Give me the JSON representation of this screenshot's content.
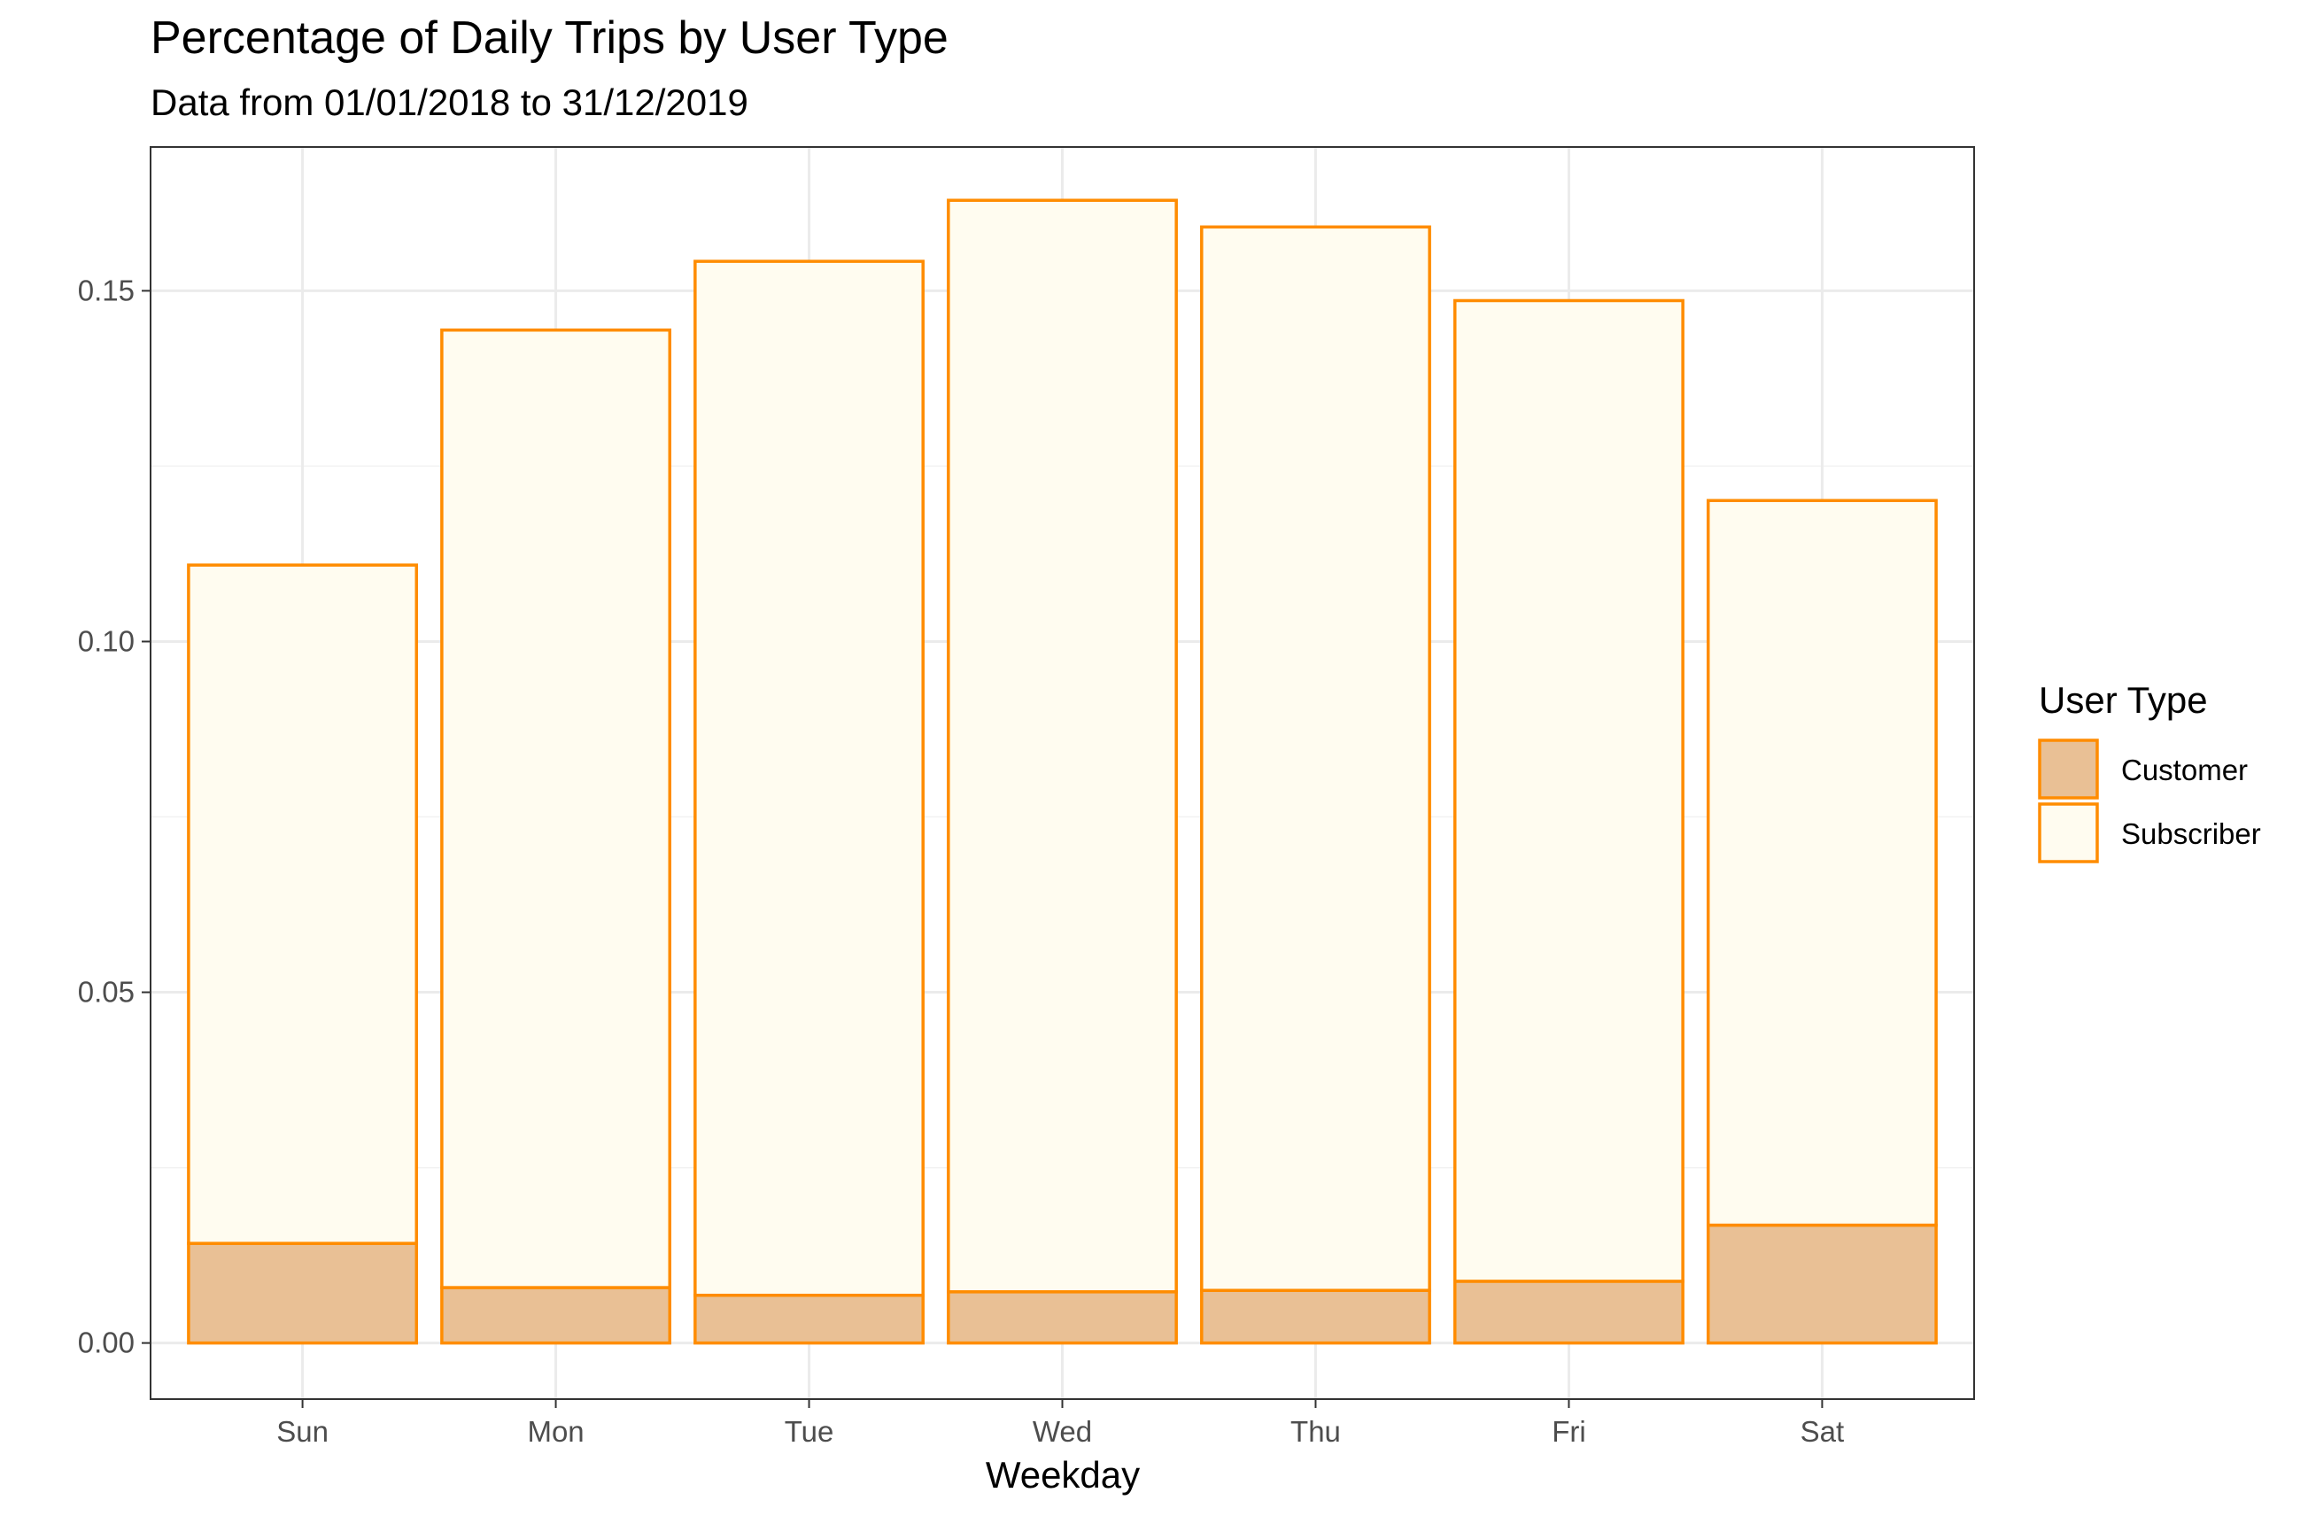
{
  "chart_data": {
    "type": "bar",
    "stacked": true,
    "title": "Percentage of Daily Trips by User Type",
    "subtitle": "Data from 01/01/2018 to 31/12/2019",
    "xlabel": "Weekday",
    "ylabel": "",
    "categories": [
      "Sun",
      "Mon",
      "Tue",
      "Wed",
      "Thu",
      "Fri",
      "Sat"
    ],
    "series": [
      {
        "name": "Customer",
        "values": [
          0.0142,
          0.0079,
          0.0068,
          0.0073,
          0.0075,
          0.0088,
          0.0168
        ],
        "fill": "#E9C095",
        "stroke": "#FF8C00"
      },
      {
        "name": "Subscriber",
        "values": [
          0.0967,
          0.1365,
          0.1474,
          0.1556,
          0.1516,
          0.1398,
          0.1033
        ],
        "fill": "#FFFCF0",
        "stroke": "#FF8C00"
      }
    ],
    "ylim": [
      -0.008,
      0.1705
    ],
    "yticks": [
      0.0,
      0.05,
      0.1,
      0.15
    ],
    "ytick_labels": [
      "0.00",
      "0.05",
      "0.10",
      "0.15"
    ],
    "grid": true,
    "legend": {
      "title": "User Type",
      "position": "right"
    }
  }
}
